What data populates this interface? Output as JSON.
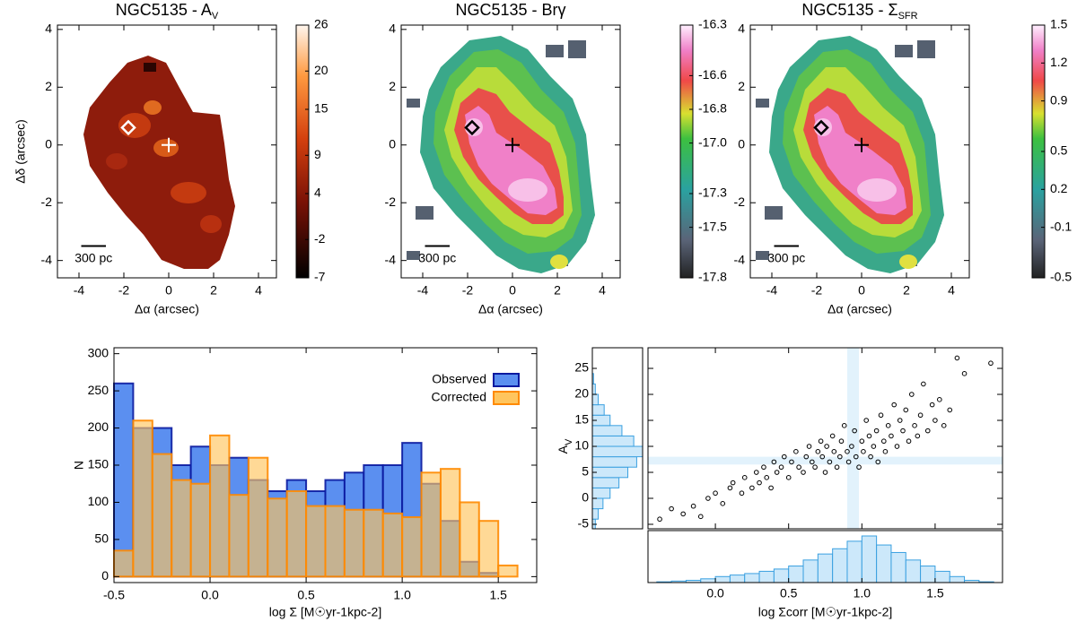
{
  "chart_data": [
    {
      "type": "map",
      "title": "NGC5135 - A",
      "title_subscript": "V",
      "xlabel": "Δα (arcsec)",
      "ylabel": "Δδ (arcsec)",
      "xlim": [
        -4.96,
        4.8
      ],
      "ylim": [
        -4.6,
        4.15
      ],
      "xticks": [
        -4,
        -2,
        0,
        2,
        4
      ],
      "yticks": [
        -4,
        -2,
        0,
        2,
        4
      ],
      "colorbar_lim": [
        -7,
        26
      ],
      "colorbar_ticks": [
        -7,
        -2,
        4,
        9,
        15,
        20,
        26
      ],
      "scalebar": {
        "label": "300 pc",
        "x": [
          -3.9,
          -2.8
        ],
        "y": -3.5
      },
      "markers": [
        {
          "symbol": "diamond",
          "x": -1.8,
          "y": 0.6,
          "color": "#ffffff"
        },
        {
          "symbol": "cross",
          "x": 0,
          "y": 0,
          "color": "#ffffff"
        }
      ]
    },
    {
      "type": "map",
      "title": "NGC5135 - Brγ",
      "xlabel": "Δα (arcsec)",
      "xlim": [
        -4.96,
        4.8
      ],
      "ylim": [
        -4.6,
        4.15
      ],
      "xticks": [
        -4,
        -2,
        0,
        2,
        4
      ],
      "yticks": [
        -4,
        -2,
        0,
        2,
        4
      ],
      "colorbar_lim": [
        -17.8,
        -16.3
      ],
      "colorbar_ticks": [
        -17.8,
        -17.5,
        -17.3,
        {
          "value": -17,
          "label": "-17.0"
        },
        -16.8,
        -16.6,
        -16.3
      ],
      "scalebar": {
        "label": "300 pc",
        "x": [
          -3.9,
          -2.8
        ],
        "y": -3.5
      },
      "markers": [
        {
          "symbol": "diamond",
          "x": -1.8,
          "y": 0.6,
          "color": "#000000"
        },
        {
          "symbol": "cross",
          "x": 0,
          "y": 0,
          "color": "#000000"
        }
      ]
    },
    {
      "type": "map",
      "title": "NGC5135 - Σ",
      "title_subscript": "SFR",
      "xlabel": "Δα (arcsec)",
      "xlim": [
        -4.96,
        4.8
      ],
      "ylim": [
        -4.6,
        4.15
      ],
      "xticks": [
        -4,
        -2,
        0,
        2,
        4
      ],
      "yticks": [
        -4,
        -2,
        0,
        2,
        4
      ],
      "colorbar_lim": [
        -0.5,
        1.5
      ],
      "colorbar_ticks": [
        -0.5,
        -0.1,
        0.2,
        0.5,
        0.9,
        1.2,
        1.5
      ],
      "scalebar": {
        "label": "300 pc",
        "x": [
          -3.9,
          -2.8
        ],
        "y": -3.5
      },
      "markers": [
        {
          "symbol": "diamond",
          "x": -1.8,
          "y": 0.6,
          "color": "#000000"
        },
        {
          "symbol": "cross",
          "x": 0,
          "y": 0,
          "color": "#000000"
        }
      ]
    },
    {
      "type": "histogram",
      "xlabel": "log Σ [M☉yr-1kpc-2]",
      "ylabel": "N",
      "bins": [
        -0.5,
        -0.4,
        -0.3,
        -0.2,
        -0.1,
        0,
        0.1,
        0.2,
        0.3,
        0.4,
        0.5,
        0.6,
        0.7,
        0.8,
        0.9,
        1.0,
        1.1,
        1.2,
        1.3,
        1.4,
        1.5,
        1.6
      ],
      "series": [
        {
          "name": "Observed",
          "color": "#5b8ff0",
          "edge": "#0a1aa0",
          "values": [
            260,
            200,
            200,
            150,
            175,
            150,
            160,
            130,
            115,
            130,
            115,
            130,
            140,
            150,
            150,
            180,
            125,
            75,
            20,
            5,
            0
          ]
        },
        {
          "name": "Corrected",
          "color": "#ffc55e",
          "edge": "#ff8a00",
          "values": [
            35,
            210,
            165,
            130,
            125,
            190,
            110,
            160,
            105,
            115,
            95,
            95,
            90,
            90,
            85,
            80,
            140,
            145,
            100,
            75,
            15
          ]
        }
      ],
      "xlim": [
        -0.5,
        1.7
      ],
      "ylim": [
        -8,
        308
      ],
      "xticks": [
        -0.5,
        {
          "value": 0,
          "label": "0.0"
        },
        0.5,
        {
          "value": 1,
          "label": "1.0"
        },
        1.5
      ],
      "yticks": [
        0,
        50,
        100,
        150,
        200,
        250,
        300
      ],
      "legend": "top-right"
    },
    {
      "type": "scatter",
      "xlabel": "log Σcorr [M☉yr-1kpc-2]",
      "ylabel": "A",
      "ylabel_subscript": "V",
      "xlim": [
        -0.46,
        1.96
      ],
      "ylim": [
        -5.86,
        28.97
      ],
      "xticks": [
        {
          "value": 0,
          "label": "0.0"
        },
        0.5,
        {
          "value": 1,
          "label": "1.0"
        },
        1.5
      ],
      "yticks": [
        -5,
        0,
        5,
        10,
        15,
        20,
        25
      ],
      "x": [
        -0.38,
        -0.3,
        -0.22,
        -0.15,
        -0.1,
        -0.05,
        0,
        0.05,
        0.1,
        0.12,
        0.18,
        0.2,
        0.25,
        0.28,
        0.3,
        0.33,
        0.35,
        0.38,
        0.4,
        0.42,
        0.45,
        0.47,
        0.5,
        0.52,
        0.55,
        0.57,
        0.6,
        0.62,
        0.64,
        0.66,
        0.68,
        0.7,
        0.72,
        0.73,
        0.75,
        0.76,
        0.78,
        0.8,
        0.81,
        0.83,
        0.85,
        0.86,
        0.88,
        0.9,
        0.91,
        0.93,
        0.95,
        0.96,
        0.98,
        1.0,
        1.01,
        1.03,
        1.05,
        1.06,
        1.08,
        1.1,
        1.11,
        1.13,
        1.15,
        1.16,
        1.18,
        1.2,
        1.22,
        1.24,
        1.26,
        1.28,
        1.3,
        1.32,
        1.34,
        1.36,
        1.38,
        1.4,
        1.42,
        1.45,
        1.48,
        1.5,
        1.53,
        1.56,
        1.6,
        1.65,
        1.7,
        1.88
      ],
      "y": [
        -4,
        -2,
        -3,
        -1.5,
        -3.5,
        0,
        1,
        -1,
        2,
        3,
        1,
        4,
        2,
        5,
        3,
        6,
        4,
        2,
        7,
        5,
        6,
        8,
        4,
        7,
        9,
        6,
        5,
        8,
        10,
        7,
        6,
        9,
        11,
        8,
        5,
        10,
        7,
        12,
        9,
        6,
        8,
        11,
        14,
        9,
        7,
        10,
        13,
        8,
        6,
        11,
        9,
        15,
        12,
        8,
        10,
        13,
        7,
        16,
        11,
        9,
        14,
        12,
        18,
        10,
        15,
        13,
        17,
        11,
        20,
        14,
        12,
        16,
        22,
        13,
        18,
        15,
        19,
        14,
        17,
        27,
        24,
        26
      ],
      "color": "#000000",
      "band_color": "#e2f2fc",
      "xband": [
        0.9,
        0.98
      ],
      "yband": [
        6.5,
        8
      ],
      "marginal_color": "#cce8fa",
      "marginal_edge": "#3aa0e0",
      "y_hist": {
        "bins": [
          -6,
          -4,
          -2,
          0,
          2,
          4,
          6,
          8,
          10,
          12,
          14,
          16,
          18,
          20,
          22,
          24
        ],
        "values": [
          5,
          10,
          18,
          30,
          45,
          60,
          75,
          85,
          70,
          50,
          30,
          20,
          10,
          5,
          2
        ]
      },
      "x_hist": {
        "bins": [
          -0.5,
          -0.4,
          -0.3,
          -0.2,
          -0.1,
          0,
          0.1,
          0.2,
          0.3,
          0.4,
          0.5,
          0.6,
          0.7,
          0.8,
          0.9,
          1.0,
          1.1,
          1.2,
          1.3,
          1.4,
          1.5,
          1.6,
          1.7,
          1.8,
          1.9
        ],
        "values": [
          0,
          1,
          2,
          3,
          5,
          8,
          10,
          12,
          15,
          18,
          22,
          30,
          38,
          45,
          55,
          62,
          50,
          40,
          30,
          22,
          15,
          8,
          3,
          1
        ]
      }
    }
  ]
}
